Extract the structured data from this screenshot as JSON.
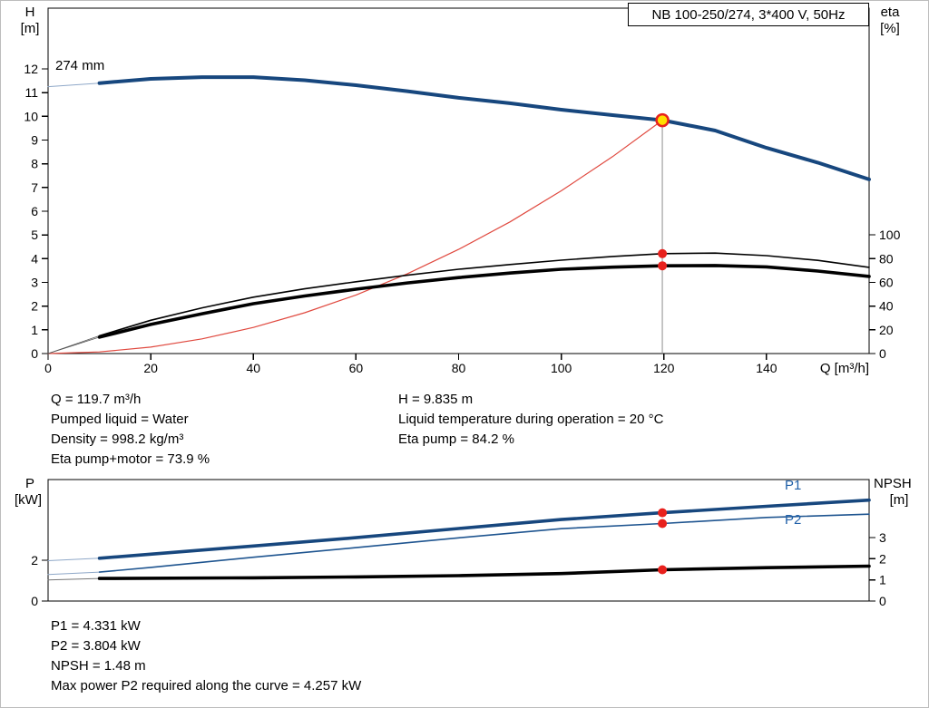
{
  "title_box": {
    "text": "NB 100-250/274, 3*400 V, 50Hz"
  },
  "impeller_label": "274 mm",
  "axis_labels": {
    "top_left": {
      "name": "H",
      "unit": "[m]"
    },
    "top_right": {
      "name": "eta",
      "unit": "[%]"
    },
    "x": "Q [m³/h]",
    "bottom_left": {
      "name": "P",
      "unit": "[kW]"
    },
    "bottom_right": {
      "name": "NPSH",
      "unit": "[m]"
    }
  },
  "series_labels": {
    "p1": "P1",
    "p2": "P2"
  },
  "info_top": {
    "left": [
      "Q = 119.7 m³/h",
      "Pumped liquid = Water",
      "Density = 998.2 kg/m³",
      "Eta pump+motor = 73.9 %"
    ],
    "right": [
      "H = 9.835 m",
      "Liquid temperature during operation = 20 °C",
      "Eta pump = 84.2 %"
    ]
  },
  "info_bottom": [
    "P1 = 4.331 kW",
    "P2 = 3.804 kW",
    "NPSH = 1.48 m",
    "Max power P2 required along the curve = 4.257 kW"
  ],
  "chart_data": [
    {
      "type": "line",
      "name": "performance",
      "title": "NB 100-250/274, 3*400 V, 50Hz",
      "x": {
        "label": "Q [m³/h]",
        "min": 0,
        "max": 160,
        "ticks": [
          0,
          20,
          40,
          60,
          80,
          100,
          120,
          140
        ],
        "show_tick_labels": true
      },
      "y_left": {
        "label": "H [m]",
        "min": 0,
        "max": 14.56,
        "ticks": [
          0,
          1,
          2,
          3,
          4,
          5,
          6,
          7,
          8,
          9,
          10,
          11,
          12
        ]
      },
      "y_right": {
        "label": "eta [%]",
        "min": 0,
        "max": 291,
        "ticks": [
          0,
          20,
          40,
          60,
          80,
          100
        ]
      },
      "legend": "none",
      "grid": false,
      "series": [
        {
          "name": "head-leadin",
          "axis": "left",
          "color": "#8fa8c8",
          "width": 1,
          "points": [
            [
              0,
              11.25
            ],
            [
              10,
              11.4
            ]
          ]
        },
        {
          "name": "head-274mm",
          "axis": "left",
          "color": "#17477e",
          "width": 4,
          "points": [
            [
              10,
              11.4
            ],
            [
              20,
              11.58
            ],
            [
              30,
              11.65
            ],
            [
              40,
              11.65
            ],
            [
              50,
              11.52
            ],
            [
              60,
              11.31
            ],
            [
              70,
              11.06
            ],
            [
              80,
              10.78
            ],
            [
              90,
              10.55
            ],
            [
              100,
              10.28
            ],
            [
              110,
              10.05
            ],
            [
              119.7,
              9.835
            ],
            [
              130,
              9.4
            ],
            [
              140,
              8.67
            ],
            [
              150,
              8.05
            ],
            [
              160,
              7.34
            ]
          ]
        },
        {
          "name": "system-curve",
          "axis": "left",
          "color": "#e0493f",
          "width": 1.2,
          "points": [
            [
              0,
              0
            ],
            [
              10,
              0.07
            ],
            [
              20,
              0.27
            ],
            [
              30,
              0.62
            ],
            [
              40,
              1.1
            ],
            [
              50,
              1.72
            ],
            [
              60,
              2.47
            ],
            [
              70,
              3.36
            ],
            [
              80,
              4.39
            ],
            [
              90,
              5.55
            ],
            [
              100,
              6.86
            ],
            [
              110,
              8.3
            ],
            [
              119.7,
              9.835
            ]
          ]
        },
        {
          "name": "eta-pump-leadin",
          "axis": "right",
          "color": "#555555",
          "width": 0.8,
          "points": [
            [
              0,
              0
            ],
            [
              10,
              15
            ]
          ]
        },
        {
          "name": "eta-pump",
          "axis": "right",
          "color": "#000000",
          "width": 1.6,
          "points": [
            [
              10,
              15
            ],
            [
              20,
              28
            ],
            [
              30,
              38.5
            ],
            [
              40,
              47.5
            ],
            [
              50,
              54.5
            ],
            [
              60,
              60.5
            ],
            [
              70,
              66
            ],
            [
              80,
              71
            ],
            [
              90,
              75
            ],
            [
              100,
              78.7
            ],
            [
              110,
              81.8
            ],
            [
              119.7,
              84.2
            ],
            [
              130,
              84.6
            ],
            [
              140,
              82.5
            ],
            [
              150,
              78.5
            ],
            [
              160,
              72.6
            ]
          ]
        },
        {
          "name": "eta-pump-motor-leadin",
          "axis": "right",
          "color": "#555555",
          "width": 0.8,
          "points": [
            [
              0,
              0
            ],
            [
              10,
              13.8
            ]
          ]
        },
        {
          "name": "eta-pump-motor",
          "axis": "right",
          "color": "#000000",
          "width": 3.6,
          "points": [
            [
              10,
              13.8
            ],
            [
              20,
              24.5
            ],
            [
              30,
              33.5
            ],
            [
              40,
              42
            ],
            [
              50,
              48.5
            ],
            [
              60,
              54.2
            ],
            [
              70,
              59.5
            ],
            [
              80,
              64
            ],
            [
              90,
              67.8
            ],
            [
              100,
              71
            ],
            [
              110,
              72.8
            ],
            [
              119.7,
              73.9
            ],
            [
              130,
              74.2
            ],
            [
              140,
              73
            ],
            [
              150,
              69.5
            ],
            [
              160,
              65
            ]
          ]
        }
      ],
      "duty_line": {
        "q": 119.7,
        "to": 9.835,
        "axis": "left",
        "color": "#8c8c8c"
      },
      "markers": [
        {
          "name": "duty-point",
          "q": 119.7,
          "v": 9.835,
          "axis": "left",
          "r": 6.5,
          "fill": "#ffdf00",
          "stroke": "#e8211d",
          "stroke_width": 2.5
        },
        {
          "name": "eta-pump-point",
          "q": 119.7,
          "v": 84.2,
          "axis": "right",
          "r": 5,
          "fill": "#e8211d"
        },
        {
          "name": "eta-pump-motor-point",
          "q": 119.7,
          "v": 73.9,
          "axis": "right",
          "r": 5,
          "fill": "#e8211d"
        }
      ]
    },
    {
      "type": "line",
      "name": "power-npsh",
      "title": "",
      "x": {
        "label": "",
        "min": 0,
        "max": 160,
        "ticks": [],
        "show_tick_labels": false
      },
      "y_left": {
        "label": "P [kW]",
        "min": 0,
        "max": 5.96,
        "ticks": [
          0,
          2
        ]
      },
      "y_right": {
        "label": "NPSH [m]",
        "min": 0,
        "max": 5.75,
        "ticks": [
          0,
          1,
          2,
          3
        ]
      },
      "legend": "inline-right",
      "grid": false,
      "series": [
        {
          "name": "p1-leadin",
          "axis": "left",
          "color": "#8fa8c8",
          "width": 1,
          "points": [
            [
              0,
              1.98
            ],
            [
              10,
              2.1
            ]
          ]
        },
        {
          "name": "p1",
          "axis": "left",
          "color": "#17477e",
          "width": 3.6,
          "points": [
            [
              10,
              2.1
            ],
            [
              20,
              2.3
            ],
            [
              40,
              2.7
            ],
            [
              60,
              3.11
            ],
            [
              80,
              3.56
            ],
            [
              100,
              4.0
            ],
            [
              119.7,
              4.331
            ],
            [
              140,
              4.65
            ],
            [
              160,
              4.95
            ]
          ]
        },
        {
          "name": "p2-leadin",
          "axis": "left",
          "color": "#8fa8c8",
          "width": 1,
          "points": [
            [
              0,
              1.3
            ],
            [
              10,
              1.42
            ]
          ]
        },
        {
          "name": "p2",
          "axis": "left",
          "color": "#1f5590",
          "width": 1.6,
          "points": [
            [
              10,
              1.42
            ],
            [
              20,
              1.65
            ],
            [
              40,
              2.15
            ],
            [
              60,
              2.62
            ],
            [
              80,
              3.1
            ],
            [
              100,
              3.55
            ],
            [
              119.7,
              3.804
            ],
            [
              140,
              4.1
            ],
            [
              160,
              4.26
            ]
          ]
        },
        {
          "name": "npsh-leadin",
          "axis": "right",
          "color": "#777777",
          "width": 1,
          "points": [
            [
              0,
              1.0
            ],
            [
              10,
              1.07
            ]
          ]
        },
        {
          "name": "npsh",
          "axis": "right",
          "color": "#000000",
          "width": 3.6,
          "points": [
            [
              10,
              1.07
            ],
            [
              40,
              1.1
            ],
            [
              60,
              1.14
            ],
            [
              80,
              1.2
            ],
            [
              100,
              1.3
            ],
            [
              119.7,
              1.48
            ],
            [
              140,
              1.58
            ],
            [
              160,
              1.65
            ]
          ]
        }
      ],
      "markers": [
        {
          "name": "p1-point",
          "q": 119.7,
          "v": 4.331,
          "axis": "left",
          "r": 5,
          "fill": "#e8211d"
        },
        {
          "name": "p2-point",
          "q": 119.7,
          "v": 3.804,
          "axis": "left",
          "r": 5,
          "fill": "#e8211d"
        },
        {
          "name": "npsh-point",
          "q": 119.7,
          "v": 1.48,
          "axis": "right",
          "r": 5,
          "fill": "#e8211d"
        }
      ]
    }
  ]
}
